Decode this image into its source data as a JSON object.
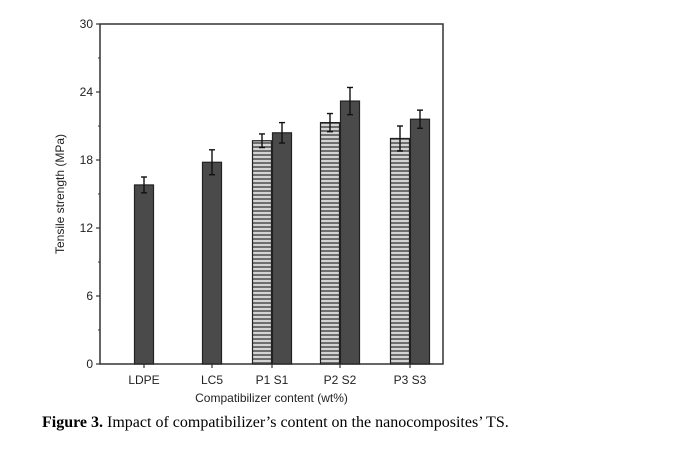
{
  "chart_data": {
    "type": "bar",
    "xlabel": "Compatibilizer content (wt%)",
    "ylabel": "Tensile strength (MPa)",
    "ylim": [
      0,
      30
    ],
    "yticks": [
      0,
      6,
      12,
      18,
      24,
      30
    ],
    "categories": [
      "LDPE",
      "LC5",
      "P1",
      "S1",
      "P2",
      "S2",
      "P3",
      "S3"
    ],
    "groups": [
      {
        "label": "LDPE",
        "bars": [
          {
            "value": 15.8,
            "error": 0.7,
            "style": "dark"
          }
        ]
      },
      {
        "label": "LC5",
        "bars": [
          {
            "value": 17.8,
            "error": 1.1,
            "style": "dark"
          }
        ]
      },
      {
        "label": "P1 S1",
        "bars": [
          {
            "value": 19.7,
            "error": 0.6,
            "style": "striped"
          },
          {
            "value": 20.4,
            "error": 0.9,
            "style": "dark"
          }
        ]
      },
      {
        "label": "P2 S2",
        "bars": [
          {
            "value": 21.3,
            "error": 0.8,
            "style": "striped"
          },
          {
            "value": 23.2,
            "error": 1.2,
            "style": "dark"
          }
        ]
      },
      {
        "label": "P3 S3",
        "bars": [
          {
            "value": 19.9,
            "error": 1.1,
            "style": "striped"
          },
          {
            "value": 21.6,
            "error": 0.8,
            "style": "dark"
          }
        ]
      }
    ],
    "colors": {
      "dark": "#4a4a4a",
      "stripe_light": "#d4d4d4",
      "stripe_dark": "#6e6e6e"
    }
  },
  "caption": {
    "label": "Figure 3.",
    "text": " Impact of compatibilizer’s content on the nanocomposites’ TS."
  }
}
